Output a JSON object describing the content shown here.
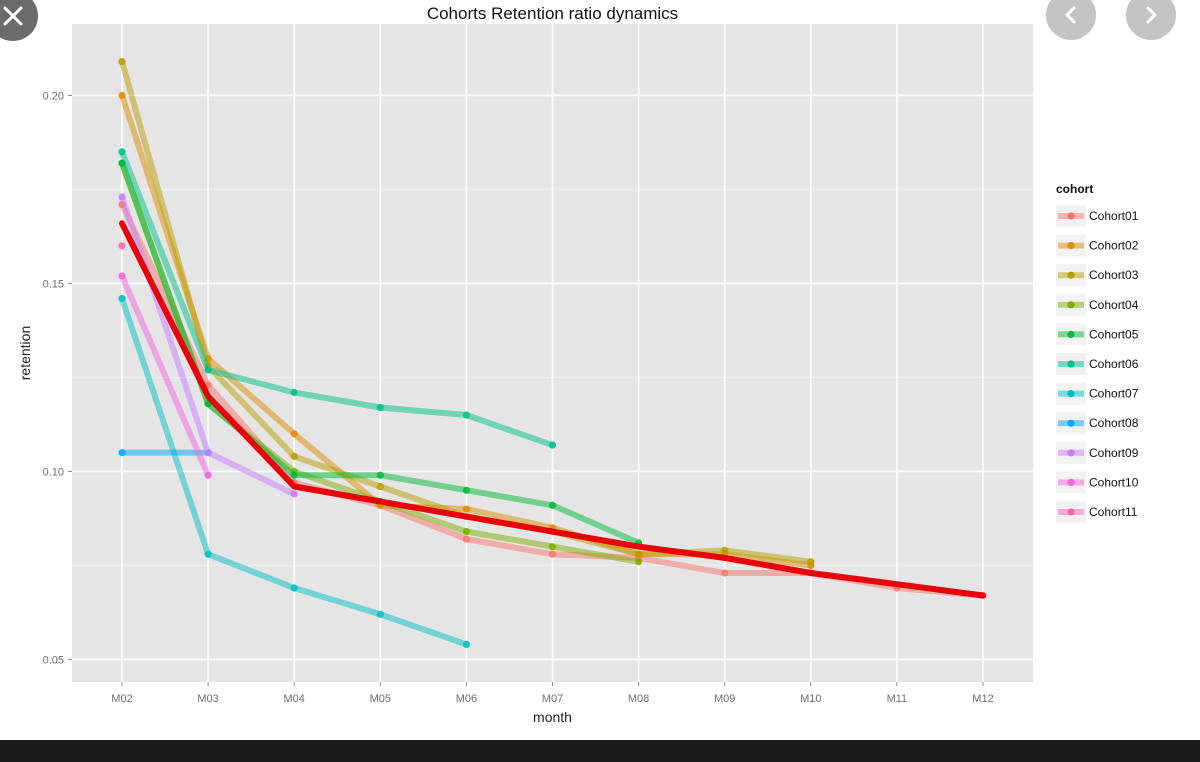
{
  "chart_data": {
    "type": "line",
    "title": "Cohorts Retention ratio dynamics",
    "xlabel": "month",
    "ylabel": "retention",
    "categories": [
      "M02",
      "M03",
      "M04",
      "M05",
      "M06",
      "M07",
      "M08",
      "M09",
      "M10",
      "M11",
      "M12"
    ],
    "y_ticks": [
      "0.05",
      "0.10",
      "0.15",
      "0.20"
    ],
    "ylim": [
      0.044,
      0.219
    ],
    "grid": true,
    "legend_title": "cohort",
    "legend_position": "right",
    "series": [
      {
        "name": "Cohort01",
        "color": "#F8766D",
        "values": [
          0.171,
          0.123,
          0.097,
          0.091,
          0.082,
          0.078,
          0.077,
          0.073,
          0.073,
          0.069,
          0.067
        ]
      },
      {
        "name": "Cohort02",
        "color": "#DE8C00",
        "values": [
          0.2,
          0.13,
          0.11,
          0.091,
          0.09,
          0.085,
          0.078,
          0.078,
          0.075,
          null,
          null
        ]
      },
      {
        "name": "Cohort03",
        "color": "#B79F00",
        "values": [
          0.209,
          0.128,
          0.104,
          0.096,
          0.088,
          0.084,
          0.078,
          0.079,
          0.076,
          null,
          null
        ]
      },
      {
        "name": "Cohort04",
        "color": "#7CAE00",
        "values": [
          0.182,
          0.118,
          0.1,
          0.092,
          0.084,
          0.08,
          0.076,
          null,
          null,
          null,
          null
        ]
      },
      {
        "name": "Cohort05",
        "color": "#00BA38",
        "values": [
          0.182,
          0.118,
          0.099,
          0.099,
          0.095,
          0.091,
          0.081,
          null,
          null,
          null,
          null
        ]
      },
      {
        "name": "Cohort06",
        "color": "#00C08B",
        "values": [
          0.185,
          0.127,
          0.121,
          0.117,
          0.115,
          0.107,
          null,
          null,
          null,
          null,
          null
        ]
      },
      {
        "name": "Cohort07",
        "color": "#00BFC4",
        "values": [
          0.146,
          0.078,
          0.069,
          0.062,
          0.054,
          null,
          null,
          null,
          null,
          null,
          null
        ]
      },
      {
        "name": "Cohort08",
        "color": "#00A9FF",
        "values": [
          0.105,
          0.105,
          null,
          null,
          null,
          null,
          null,
          null,
          null,
          null,
          null
        ]
      },
      {
        "name": "Cohort09",
        "color": "#C77CFF",
        "values": [
          0.173,
          0.105,
          0.094,
          null,
          null,
          null,
          null,
          null,
          null,
          null,
          null
        ]
      },
      {
        "name": "Cohort10",
        "color": "#F564E3",
        "values": [
          0.152,
          0.099,
          null,
          null,
          null,
          null,
          null,
          null,
          null,
          null,
          null
        ]
      },
      {
        "name": "Cohort11",
        "color": "#FF64B0",
        "values": [
          0.16,
          null,
          null,
          null,
          null,
          null,
          null,
          null,
          null,
          null,
          null
        ]
      }
    ],
    "average_line": {
      "color": "#E8000B",
      "values": [
        0.166,
        0.12,
        0.096,
        0.092,
        0.088,
        0.084,
        0.08,
        0.077,
        0.073,
        0.07,
        0.067
      ]
    }
  },
  "icons": {
    "close": "close-icon",
    "prev": "chevron-left-icon",
    "next": "chevron-right-icon"
  }
}
